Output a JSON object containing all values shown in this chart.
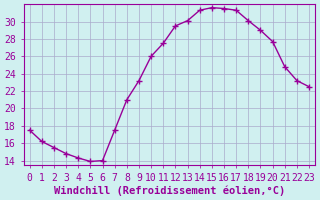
{
  "x": [
    0,
    1,
    2,
    3,
    4,
    5,
    6,
    7,
    8,
    9,
    10,
    11,
    12,
    13,
    14,
    15,
    16,
    17,
    18,
    19,
    20,
    21,
    22,
    23
  ],
  "y": [
    17.5,
    16.2,
    15.5,
    14.8,
    14.3,
    13.9,
    14.0,
    17.5,
    21.0,
    23.2,
    26.0,
    27.5,
    29.5,
    30.1,
    31.3,
    31.6,
    31.5,
    31.3,
    30.1,
    29.0,
    27.7,
    24.8,
    23.2,
    22.5
  ],
  "line_color": "#990099",
  "marker": "+",
  "bg_color": "#d0f0f0",
  "grid_color": "#aaaacc",
  "xlabel": "Windchill (Refroidissement éolien,°C)",
  "ylabel_ticks": [
    14,
    16,
    18,
    20,
    22,
    24,
    26,
    28,
    30
  ],
  "xlim": [
    -0.5,
    23.5
  ],
  "ylim": [
    13.5,
    32
  ],
  "xticks": [
    0,
    1,
    2,
    3,
    4,
    5,
    6,
    7,
    8,
    9,
    10,
    11,
    12,
    13,
    14,
    15,
    16,
    17,
    18,
    19,
    20,
    21,
    22,
    23
  ],
  "font_color": "#990099",
  "font_size": 7,
  "xlabel_fontsize": 7.5
}
